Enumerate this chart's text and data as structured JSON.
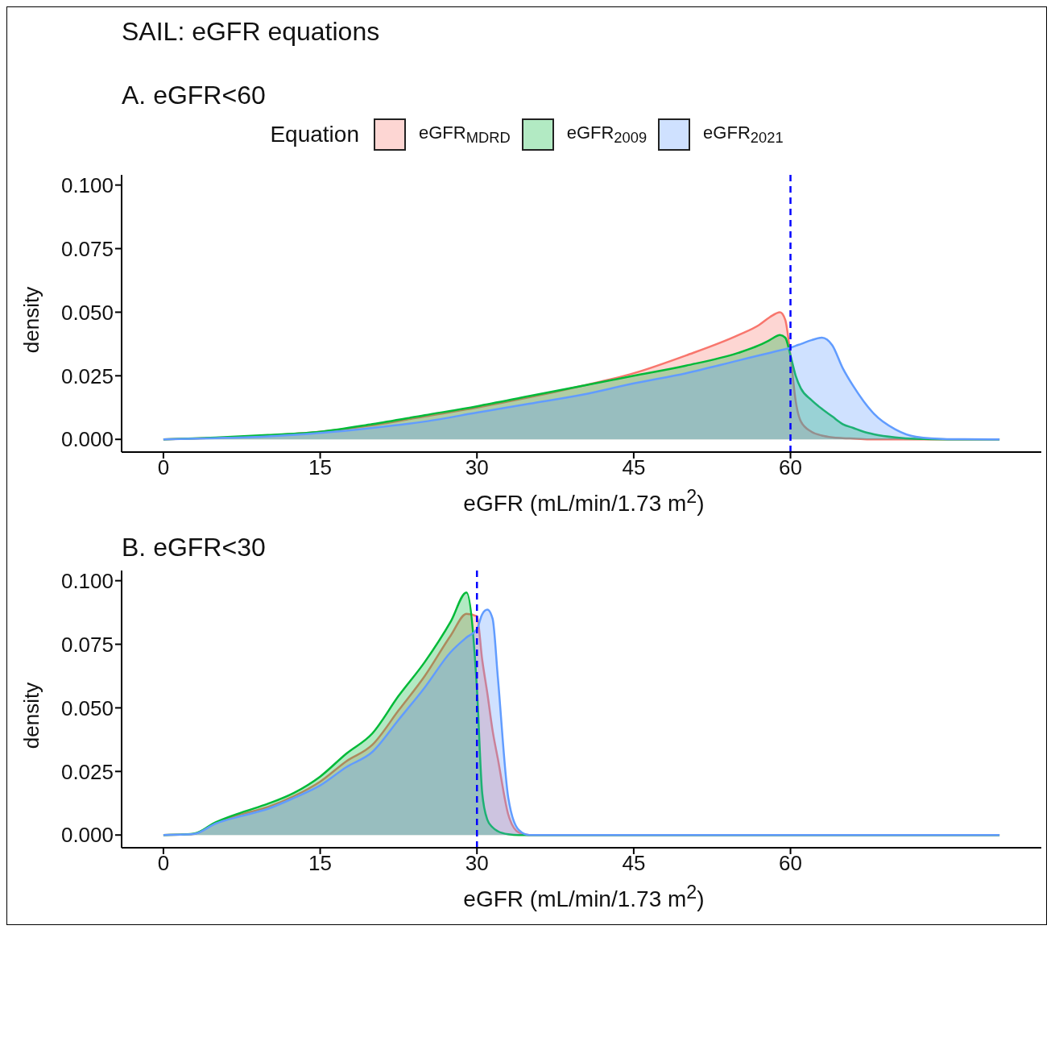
{
  "chart_data": [
    {
      "type": "area",
      "title": "SAIL: eGFR equations",
      "subtitle": "A. eGFR<60",
      "legend_title": "Equation",
      "legend": "top",
      "xlabel": "eGFR (mL/min/1.73 m$^{2}$)",
      "ylabel": "density",
      "xlim": [
        -4,
        84
      ],
      "xticks": [
        0,
        15,
        30,
        45,
        60
      ],
      "ylim": [
        -0.005,
        0.104
      ],
      "yticks": [
        {
          "value": 0,
          "label": "0.000"
        },
        {
          "value": 0.025,
          "label": "0.025"
        },
        {
          "value": 0.05,
          "label": "0.050"
        },
        {
          "value": 0.075,
          "label": "0.075"
        },
        {
          "value": 0.1,
          "label": "0.100"
        }
      ],
      "grid": false,
      "x": [
        0,
        5,
        10,
        15,
        20,
        25,
        30,
        35,
        40,
        45,
        50,
        55,
        57,
        58,
        59,
        59.5,
        60,
        60.5,
        61,
        62,
        63,
        64,
        65,
        66,
        67,
        68,
        70,
        72,
        75,
        80
      ],
      "series": [
        {
          "name": "eGFR$_{MDRD}$",
          "color": "#f8766d",
          "values": [
            0,
            0.0006,
            0.0015,
            0.003,
            0.0055,
            0.009,
            0.0125,
            0.0165,
            0.021,
            0.026,
            0.033,
            0.041,
            0.045,
            0.048,
            0.05,
            0.047,
            0.033,
            0.015,
            0.007,
            0.003,
            0.0015,
            0.0008,
            0.0005,
            0.0003,
            0.0001,
            0,
            0,
            0,
            0,
            0
          ]
        },
        {
          "name": "eGFR$_{2009}$",
          "color": "#00ba38",
          "values": [
            0,
            0.0007,
            0.0017,
            0.003,
            0.006,
            0.0095,
            0.013,
            0.017,
            0.021,
            0.025,
            0.029,
            0.034,
            0.037,
            0.039,
            0.041,
            0.04,
            0.033,
            0.025,
            0.02,
            0.0155,
            0.012,
            0.009,
            0.006,
            0.0045,
            0.003,
            0.002,
            0.0008,
            0.0002,
            0,
            0
          ]
        },
        {
          "name": "eGFR$_{2021}$",
          "color": "#619cff",
          "values": [
            0,
            0.0005,
            0.0012,
            0.0025,
            0.0045,
            0.007,
            0.0105,
            0.014,
            0.0175,
            0.022,
            0.026,
            0.031,
            0.033,
            0.034,
            0.035,
            0.0355,
            0.036,
            0.0368,
            0.0375,
            0.039,
            0.04,
            0.037,
            0.028,
            0.021,
            0.015,
            0.01,
            0.004,
            0.001,
            0.0001,
            0
          ]
        }
      ],
      "ref_lines": [
        {
          "axis": "x",
          "value": 60,
          "color": "#0000ff",
          "line_style": "dashed"
        }
      ]
    },
    {
      "type": "area",
      "title": "B. eGFR<30",
      "legend": false,
      "xlabel": "eGFR (mL/min/1.73 m$^{2}$)",
      "ylabel": "density",
      "xlim": [
        -4,
        84
      ],
      "xticks": [
        0,
        15,
        30,
        45,
        60
      ],
      "ylim": [
        -0.005,
        0.104
      ],
      "yticks": [
        {
          "value": 0,
          "label": "0.000"
        },
        {
          "value": 0.025,
          "label": "0.025"
        },
        {
          "value": 0.05,
          "label": "0.050"
        },
        {
          "value": 0.075,
          "label": "0.075"
        },
        {
          "value": 0.1,
          "label": "0.100"
        }
      ],
      "grid": false,
      "x": [
        0,
        2,
        3,
        5,
        7.5,
        10,
        12.5,
        15,
        17.5,
        20,
        22.5,
        25,
        27.5,
        29,
        30,
        30.5,
        31,
        31.5,
        32,
        33,
        34,
        35,
        40,
        80
      ],
      "series": [
        {
          "color": "#f8766d",
          "values": [
            0,
            0.0002,
            0.0005,
            0.0048,
            0.0082,
            0.011,
            0.0153,
            0.021,
            0.029,
            0.0355,
            0.049,
            0.0625,
            0.0785,
            0.087,
            0.086,
            0.069,
            0.0556,
            0.041,
            0.03,
            0.008,
            0.001,
            0,
            0,
            0
          ]
        },
        {
          "color": "#00ba38",
          "values": [
            0,
            0.0002,
            0.0006,
            0.005,
            0.0089,
            0.0123,
            0.0166,
            0.023,
            0.032,
            0.04,
            0.0547,
            0.068,
            0.084,
            0.0954,
            0.0575,
            0.0166,
            0.006,
            0.003,
            0.0015,
            0.0003,
            0,
            0,
            0,
            0
          ]
        },
        {
          "color": "#619cff",
          "values": [
            0,
            0.0002,
            0.0005,
            0.0045,
            0.0075,
            0.0103,
            0.0146,
            0.0195,
            0.0267,
            0.0327,
            0.0453,
            0.058,
            0.072,
            0.0777,
            0.081,
            0.0868,
            0.0886,
            0.085,
            0.062,
            0.0146,
            0.002,
            0,
            0,
            0
          ]
        }
      ],
      "ref_lines": [
        {
          "axis": "x",
          "value": 30,
          "color": "#0000ff",
          "line_style": "dashed"
        }
      ]
    }
  ]
}
